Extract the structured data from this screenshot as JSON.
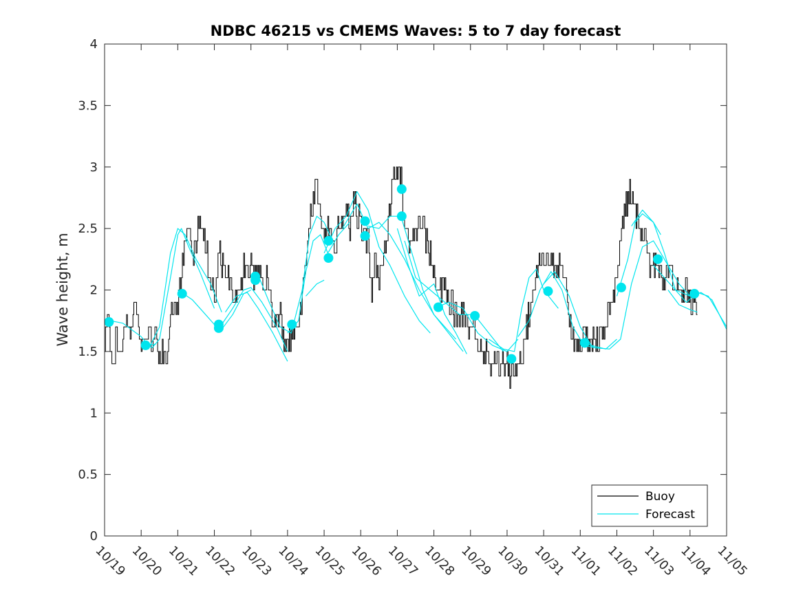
{
  "chart_data": {
    "type": "line",
    "title": "NDBC 46215 vs CMEMS Waves: 5 to 7 day forecast",
    "xlabel": "",
    "ylabel": "Wave height, m",
    "xlim": [
      0,
      17
    ],
    "ylim": [
      0,
      4
    ],
    "grid": false,
    "legend_position": "bottom-right",
    "x_tick_values": [
      0,
      1,
      2,
      3,
      4,
      5,
      6,
      7,
      8,
      9,
      10,
      11,
      12,
      13,
      14,
      15,
      16,
      17
    ],
    "x_tick_labels": [
      "10/19",
      "10/20",
      "10/21",
      "10/22",
      "10/23",
      "10/24",
      "10/25",
      "10/26",
      "10/27",
      "10/28",
      "10/29",
      "10/30",
      "10/31",
      "11/01",
      "11/02",
      "11/03",
      "11/04",
      "11/05"
    ],
    "y_tick_values": [
      0,
      0.5,
      1,
      1.5,
      2,
      2.5,
      3,
      3.5,
      4
    ],
    "y_tick_labels": [
      "0",
      "0.5",
      "1",
      "1.5",
      "2",
      "2.5",
      "3",
      "3.5",
      "4"
    ],
    "colors": {
      "buoy": "#000000",
      "forecast": "#00e5ee",
      "axis": "#262626"
    },
    "legend": [
      {
        "name": "Buoy",
        "color": "#000000"
      },
      {
        "name": "Forecast",
        "color": "#00e5ee"
      }
    ],
    "buoy_anchors": [
      [
        0,
        1.6
      ],
      [
        0.1,
        1.75
      ],
      [
        0.2,
        1.35
      ],
      [
        0.3,
        1.6
      ],
      [
        0.5,
        1.6
      ],
      [
        0.6,
        1.8
      ],
      [
        0.7,
        1.6
      ],
      [
        0.8,
        1.95
      ],
      [
        0.9,
        1.7
      ],
      [
        1.0,
        1.55
      ],
      [
        1.1,
        1.6
      ],
      [
        1.2,
        1.7
      ],
      [
        1.3,
        1.5
      ],
      [
        1.4,
        1.7
      ],
      [
        1.5,
        1.45
      ],
      [
        1.6,
        1.5
      ],
      [
        1.7,
        1.45
      ],
      [
        1.8,
        1.8
      ],
      [
        1.9,
        1.9
      ],
      [
        2.0,
        1.85
      ],
      [
        2.1,
        2.2
      ],
      [
        2.2,
        2.4
      ],
      [
        2.3,
        2.45
      ],
      [
        2.4,
        2.2
      ],
      [
        2.5,
        2.4
      ],
      [
        2.6,
        2.6
      ],
      [
        2.7,
        2.4
      ],
      [
        2.8,
        2.3
      ],
      [
        2.9,
        2.1
      ],
      [
        3.0,
        1.9
      ],
      [
        3.1,
        2.3
      ],
      [
        3.2,
        2.2
      ],
      [
        3.3,
        2.2
      ],
      [
        3.4,
        2.1
      ],
      [
        3.5,
        2.05
      ],
      [
        3.6,
        1.9
      ],
      [
        3.7,
        2.0
      ],
      [
        3.8,
        2.2
      ],
      [
        3.9,
        2.1
      ],
      [
        4.0,
        2.2
      ],
      [
        4.1,
        2.1
      ],
      [
        4.2,
        2.15
      ],
      [
        4.3,
        2.05
      ],
      [
        4.4,
        2.1
      ],
      [
        4.5,
        2.0
      ],
      [
        4.6,
        1.75
      ],
      [
        4.7,
        1.7
      ],
      [
        4.8,
        1.8
      ],
      [
        4.9,
        1.6
      ],
      [
        5.0,
        1.55
      ],
      [
        5.1,
        1.65
      ],
      [
        5.2,
        1.6
      ],
      [
        5.3,
        1.8
      ],
      [
        5.4,
        1.9
      ],
      [
        5.5,
        2.2
      ],
      [
        5.6,
        2.6
      ],
      [
        5.7,
        2.75
      ],
      [
        5.8,
        2.8
      ],
      [
        5.9,
        2.6
      ],
      [
        6.0,
        2.45
      ],
      [
        6.1,
        2.5
      ],
      [
        6.2,
        2.4
      ],
      [
        6.3,
        2.3
      ],
      [
        6.4,
        2.55
      ],
      [
        6.5,
        2.5
      ],
      [
        6.6,
        2.7
      ],
      [
        6.7,
        2.5
      ],
      [
        6.8,
        2.8
      ],
      [
        6.9,
        2.6
      ],
      [
        7.0,
        2.5
      ],
      [
        7.1,
        2.4
      ],
      [
        7.2,
        2.4
      ],
      [
        7.3,
        2.0
      ],
      [
        7.4,
        2.2
      ],
      [
        7.5,
        2.1
      ],
      [
        7.6,
        2.3
      ],
      [
        7.7,
        2.4
      ],
      [
        7.8,
        2.7
      ],
      [
        7.9,
        3.0
      ],
      [
        8.0,
        2.95
      ],
      [
        8.1,
        2.9
      ],
      [
        8.2,
        2.5
      ],
      [
        8.3,
        2.4
      ],
      [
        8.4,
        2.5
      ],
      [
        8.5,
        2.5
      ],
      [
        8.6,
        2.6
      ],
      [
        8.7,
        2.5
      ],
      [
        8.8,
        2.4
      ],
      [
        8.9,
        2.3
      ],
      [
        9.0,
        2.1
      ],
      [
        9.1,
        2.0
      ],
      [
        9.2,
        2.0
      ],
      [
        9.3,
        2.0
      ],
      [
        9.4,
        1.9
      ],
      [
        9.5,
        1.9
      ],
      [
        9.6,
        1.8
      ],
      [
        9.7,
        1.8
      ],
      [
        9.8,
        1.85
      ],
      [
        9.9,
        1.75
      ],
      [
        10.0,
        1.7
      ],
      [
        10.1,
        1.7
      ],
      [
        10.2,
        1.6
      ],
      [
        10.3,
        1.55
      ],
      [
        10.4,
        1.5
      ],
      [
        10.5,
        1.45
      ],
      [
        10.6,
        1.4
      ],
      [
        10.7,
        1.45
      ],
      [
        10.8,
        1.35
      ],
      [
        10.9,
        1.4
      ],
      [
        11.0,
        1.35
      ],
      [
        11.1,
        1.3
      ],
      [
        11.2,
        1.3
      ],
      [
        11.3,
        1.45
      ],
      [
        11.4,
        1.5
      ],
      [
        11.5,
        1.65
      ],
      [
        11.6,
        1.8
      ],
      [
        11.7,
        2.0
      ],
      [
        11.8,
        2.2
      ],
      [
        11.9,
        2.3
      ],
      [
        12.0,
        2.2
      ],
      [
        12.1,
        2.3
      ],
      [
        12.2,
        2.2
      ],
      [
        12.3,
        2.15
      ],
      [
        12.4,
        2.2
      ],
      [
        12.5,
        2.1
      ],
      [
        12.6,
        2.0
      ],
      [
        12.7,
        1.8
      ],
      [
        12.8,
        1.6
      ],
      [
        12.9,
        1.6
      ],
      [
        13.0,
        1.55
      ],
      [
        13.1,
        1.6
      ],
      [
        13.2,
        1.6
      ],
      [
        13.3,
        1.6
      ],
      [
        13.4,
        1.6
      ],
      [
        13.5,
        1.6
      ],
      [
        13.6,
        1.65
      ],
      [
        13.7,
        1.8
      ],
      [
        13.8,
        1.8
      ],
      [
        13.9,
        1.95
      ],
      [
        14.0,
        2.2
      ],
      [
        14.1,
        2.4
      ],
      [
        14.2,
        2.6
      ],
      [
        14.3,
        2.8
      ],
      [
        14.4,
        2.7
      ],
      [
        14.5,
        2.6
      ],
      [
        14.6,
        2.6
      ],
      [
        14.7,
        2.5
      ],
      [
        14.8,
        2.4
      ],
      [
        14.9,
        2.25
      ],
      [
        15.0,
        2.2
      ],
      [
        15.1,
        2.15
      ],
      [
        15.2,
        2.05
      ],
      [
        15.3,
        2.0
      ],
      [
        15.4,
        2.15
      ],
      [
        15.5,
        2.1
      ],
      [
        15.6,
        2.0
      ],
      [
        15.7,
        2.05
      ],
      [
        15.8,
        1.95
      ],
      [
        15.9,
        2.0
      ],
      [
        16.0,
        1.9
      ],
      [
        16.1,
        1.95
      ],
      [
        16.2,
        1.8
      ]
    ],
    "forecast_lines": [
      [
        [
          0,
          1.76
        ],
        [
          0.5,
          1.73
        ],
        [
          1.0,
          1.62
        ],
        [
          1.2,
          1.55
        ],
        [
          1.4,
          1.56
        ]
      ],
      [
        [
          1.0,
          1.58
        ],
        [
          1.3,
          1.53
        ],
        [
          1.5,
          1.6
        ],
        [
          1.8,
          2.1
        ],
        [
          2.0,
          2.45
        ],
        [
          2.1,
          2.5
        ],
        [
          2.3,
          2.35
        ],
        [
          2.6,
          2.15
        ],
        [
          3.0,
          1.85
        ]
      ],
      [
        [
          1.2,
          1.52
        ],
        [
          1.5,
          1.7
        ],
        [
          1.8,
          2.3
        ],
        [
          2.0,
          2.5
        ],
        [
          2.2,
          2.45
        ],
        [
          2.5,
          2.25
        ],
        [
          2.9,
          2.05
        ],
        [
          3.2,
          1.82
        ]
      ],
      [
        [
          2.0,
          2.0
        ],
        [
          2.4,
          1.92
        ],
        [
          2.7,
          1.82
        ],
        [
          3.0,
          1.72
        ],
        [
          3.2,
          1.68
        ],
        [
          3.5,
          1.8
        ],
        [
          3.8,
          1.97
        ],
        [
          4.0,
          2.0
        ]
      ],
      [
        [
          3.2,
          1.72
        ],
        [
          3.5,
          1.85
        ],
        [
          3.8,
          2.0
        ],
        [
          4.0,
          2.02
        ],
        [
          4.3,
          1.9
        ],
        [
          4.7,
          1.7
        ],
        [
          5.0,
          1.5
        ]
      ],
      [
        [
          3.3,
          1.82
        ],
        [
          3.6,
          1.95
        ],
        [
          3.9,
          1.98
        ],
        [
          4.2,
          1.85
        ],
        [
          4.6,
          1.65
        ],
        [
          5.0,
          1.42
        ]
      ],
      [
        [
          4.0,
          2.1
        ],
        [
          4.2,
          2.12
        ],
        [
          4.5,
          1.9
        ],
        [
          4.8,
          1.7
        ],
        [
          5.1,
          1.65
        ],
        [
          5.4,
          2.0
        ],
        [
          5.6,
          2.45
        ],
        [
          5.8,
          2.6
        ],
        [
          6.0,
          2.55
        ],
        [
          6.2,
          2.42
        ]
      ],
      [
        [
          5.0,
          1.65
        ],
        [
          5.3,
          1.75
        ],
        [
          5.5,
          2.15
        ],
        [
          5.7,
          2.4
        ],
        [
          5.9,
          2.45
        ],
        [
          6.1,
          2.3
        ],
        [
          6.4,
          2.45
        ],
        [
          6.7,
          2.55
        ]
      ],
      [
        [
          5.5,
          1.95
        ],
        [
          5.8,
          2.05
        ],
        [
          6.0,
          2.08
        ]
      ],
      [
        [
          6.0,
          2.3
        ],
        [
          6.3,
          2.5
        ],
        [
          6.6,
          2.6
        ],
        [
          6.9,
          2.8
        ],
        [
          7.2,
          2.65
        ],
        [
          7.5,
          2.35
        ],
        [
          7.8,
          2.2
        ],
        [
          8.2,
          1.95
        ],
        [
          8.6,
          1.75
        ],
        [
          8.9,
          1.65
        ]
      ],
      [
        [
          6.5,
          2.5
        ],
        [
          6.9,
          2.7
        ],
        [
          7.2,
          2.5
        ],
        [
          7.5,
          2.55
        ],
        [
          7.8,
          2.45
        ],
        [
          8.2,
          2.25
        ],
        [
          8.6,
          2.0
        ],
        [
          9.0,
          1.8
        ],
        [
          9.3,
          1.7
        ],
        [
          9.6,
          1.6
        ]
      ],
      [
        [
          7.2,
          2.52
        ],
        [
          7.5,
          2.5
        ],
        [
          7.8,
          2.6
        ],
        [
          8.1,
          2.6
        ],
        [
          8.4,
          2.3
        ],
        [
          8.7,
          2.0
        ],
        [
          9.0,
          1.8
        ],
        [
          9.4,
          1.65
        ],
        [
          9.8,
          1.5
        ]
      ],
      [
        [
          8.0,
          2.5
        ],
        [
          8.3,
          2.2
        ],
        [
          8.6,
          1.95
        ],
        [
          9.0,
          2.05
        ],
        [
          9.3,
          1.8
        ],
        [
          9.6,
          1.65
        ],
        [
          9.9,
          1.48
        ]
      ],
      [
        [
          8.2,
          2.4
        ],
        [
          8.5,
          2.1
        ],
        [
          8.9,
          2.0
        ],
        [
          9.3,
          1.9
        ],
        [
          9.7,
          1.8
        ],
        [
          10.1,
          1.8
        ],
        [
          10.5,
          1.65
        ],
        [
          10.9,
          1.5
        ]
      ],
      [
        [
          9.0,
          1.85
        ],
        [
          9.4,
          1.9
        ],
        [
          9.8,
          1.85
        ],
        [
          10.2,
          1.65
        ],
        [
          10.6,
          1.55
        ],
        [
          11.0,
          1.5
        ],
        [
          11.3,
          1.6
        ]
      ],
      [
        [
          10.5,
          1.6
        ],
        [
          10.9,
          1.52
        ],
        [
          11.2,
          1.5
        ],
        [
          11.4,
          1.85
        ],
        [
          11.6,
          2.1
        ],
        [
          11.8,
          2.17
        ],
        [
          12.0,
          2.0
        ],
        [
          12.4,
          1.85
        ]
      ],
      [
        [
          11.3,
          1.62
        ],
        [
          11.6,
          1.75
        ],
        [
          11.9,
          2.0
        ],
        [
          12.2,
          2.15
        ],
        [
          12.5,
          2.0
        ],
        [
          12.8,
          1.7
        ],
        [
          13.1,
          1.55
        ],
        [
          13.4,
          1.53
        ]
      ],
      [
        [
          12.0,
          2.05
        ],
        [
          12.3,
          2.15
        ],
        [
          12.7,
          1.95
        ],
        [
          13.0,
          1.7
        ],
        [
          13.3,
          1.55
        ],
        [
          13.7,
          1.52
        ],
        [
          14.0,
          1.6
        ]
      ],
      [
        [
          13.0,
          1.6
        ],
        [
          13.4,
          1.53
        ],
        [
          13.8,
          1.52
        ],
        [
          14.1,
          1.6
        ],
        [
          14.4,
          2.05
        ],
        [
          14.7,
          2.35
        ],
        [
          15.0,
          2.4
        ],
        [
          15.3,
          2.25
        ],
        [
          15.7,
          2.05
        ],
        [
          16.0,
          1.95
        ]
      ],
      [
        [
          14.0,
          1.95
        ],
        [
          14.3,
          2.25
        ],
        [
          14.5,
          2.55
        ],
        [
          14.7,
          2.62
        ],
        [
          15.0,
          2.55
        ],
        [
          15.2,
          2.45
        ]
      ],
      [
        [
          14.4,
          2.52
        ],
        [
          14.7,
          2.65
        ],
        [
          15.0,
          2.55
        ],
        [
          15.3,
          2.3
        ],
        [
          15.6,
          2.0
        ],
        [
          15.9,
          1.9
        ],
        [
          16.2,
          1.98
        ],
        [
          16.5,
          1.95
        ],
        [
          17.0,
          1.7
        ]
      ],
      [
        [
          15.0,
          2.2
        ],
        [
          15.3,
          2.1
        ],
        [
          15.6,
          2.0
        ],
        [
          16.0,
          1.95
        ],
        [
          16.3,
          1.98
        ],
        [
          16.6,
          1.92
        ],
        [
          17.0,
          1.68
        ]
      ],
      [
        [
          15.4,
          2.0
        ],
        [
          15.7,
          1.88
        ],
        [
          16.0,
          1.84
        ],
        [
          16.2,
          1.82
        ]
      ]
    ],
    "forecast_markers": [
      [
        0.12,
        1.74
      ],
      [
        1.12,
        1.55
      ],
      [
        2.12,
        1.97
      ],
      [
        3.12,
        1.72
      ],
      [
        3.12,
        1.69
      ],
      [
        4.12,
        2.11
      ],
      [
        4.12,
        2.08
      ],
      [
        5.12,
        1.72
      ],
      [
        6.12,
        2.4
      ],
      [
        6.12,
        2.26
      ],
      [
        7.12,
        2.56
      ],
      [
        7.12,
        2.44
      ],
      [
        8.12,
        2.82
      ],
      [
        8.12,
        2.6
      ],
      [
        9.12,
        1.86
      ],
      [
        10.12,
        1.79
      ],
      [
        11.12,
        1.44
      ],
      [
        12.12,
        1.99
      ],
      [
        13.12,
        1.57
      ],
      [
        14.12,
        2.02
      ],
      [
        15.12,
        2.25
      ],
      [
        16.12,
        1.97
      ]
    ]
  }
}
